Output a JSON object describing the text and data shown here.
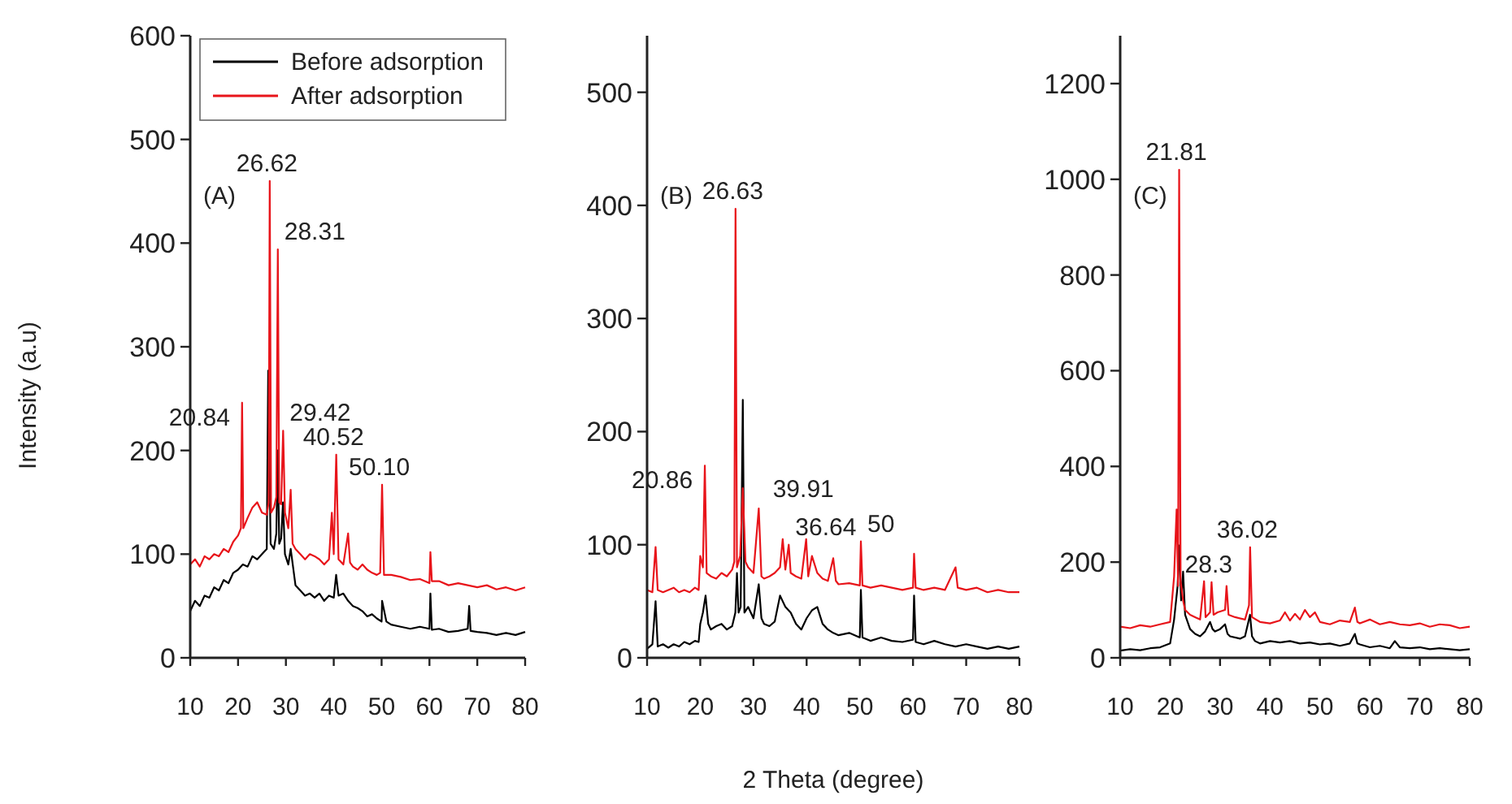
{
  "chart_data": [
    {
      "type": "line",
      "ylabel": "Intensity (a.u)",
      "xlim": [
        10,
        80
      ],
      "xticks": [
        10,
        20,
        30,
        40,
        50,
        60,
        70,
        80
      ],
      "ylim": [
        0,
        600
      ],
      "yticks": [
        0,
        100,
        200,
        300,
        400,
        500,
        600
      ],
      "legend": "top left",
      "line_style": "solid",
      "annotations": [
        "(A)",
        {
          "text": "20.84",
          "x": 20.84,
          "y": 246
        },
        {
          "text": "26.62",
          "x": 26.62,
          "y": 460
        },
        {
          "text": "28.31",
          "x": 28.31,
          "y": 394
        },
        {
          "text": "29.42",
          "x": 29.42,
          "y": 219
        },
        {
          "text": "40.52",
          "x": 40.52,
          "y": 196
        },
        {
          "text": "50.10",
          "x": 50.1,
          "y": 167
        }
      ],
      "series": [
        {
          "name": "Before adsorption",
          "color": "#000000",
          "x": [
            10,
            11,
            12,
            13,
            14,
            15,
            16,
            17,
            18,
            19,
            20,
            21,
            22,
            23,
            24,
            25,
            26,
            26.3,
            26.8,
            27.5,
            28,
            28.3,
            28.6,
            29,
            29.4,
            29.8,
            30.5,
            31,
            32,
            33,
            34,
            35,
            36,
            37,
            38,
            39,
            40,
            40.5,
            41,
            42,
            43,
            44,
            45,
            46,
            47,
            48,
            49,
            50,
            50.1,
            51,
            52,
            54,
            56,
            58,
            60,
            60.2,
            60.5,
            62,
            64,
            66,
            68,
            68.3,
            68.6,
            70,
            72,
            74,
            76,
            78,
            80
          ],
          "values": [
            45,
            55,
            50,
            60,
            58,
            68,
            65,
            75,
            72,
            82,
            85,
            90,
            88,
            98,
            95,
            100,
            105,
            277,
            110,
            105,
            120,
            200,
            110,
            115,
            150,
            100,
            90,
            105,
            70,
            65,
            60,
            62,
            58,
            62,
            55,
            60,
            58,
            80,
            60,
            62,
            55,
            50,
            48,
            45,
            40,
            42,
            38,
            35,
            55,
            35,
            32,
            30,
            28,
            30,
            28,
            62,
            27,
            28,
            25,
            26,
            28,
            50,
            26,
            25,
            24,
            22,
            24,
            22,
            25
          ]
        },
        {
          "name": "After adsorption",
          "color": "#e8141a",
          "x": [
            10,
            11,
            12,
            13,
            14,
            15,
            16,
            17,
            18,
            19,
            20,
            20.6,
            20.84,
            21.1,
            22,
            23,
            24,
            25,
            26,
            26.4,
            26.62,
            26.9,
            27.5,
            28,
            28.31,
            28.6,
            29,
            29.42,
            29.8,
            30.5,
            31,
            31.4,
            32,
            33,
            34,
            35,
            36,
            37,
            38,
            39,
            39.6,
            40,
            40.52,
            41,
            42,
            43,
            43.4,
            44,
            45,
            46,
            47,
            48,
            49,
            49.7,
            50.1,
            50.5,
            52,
            54,
            56,
            58,
            60,
            60.2,
            60.5,
            62,
            64,
            66,
            68,
            70,
            72,
            74,
            76,
            78,
            80
          ],
          "values": [
            90,
            95,
            88,
            98,
            95,
            100,
            98,
            105,
            102,
            112,
            118,
            125,
            246,
            125,
            135,
            145,
            150,
            140,
            138,
            150,
            460,
            140,
            145,
            155,
            394,
            150,
            148,
            219,
            140,
            125,
            162,
            110,
            105,
            100,
            95,
            100,
            98,
            95,
            90,
            95,
            140,
            100,
            196,
            95,
            90,
            120,
            92,
            88,
            85,
            90,
            85,
            82,
            80,
            82,
            167,
            80,
            80,
            78,
            75,
            76,
            72,
            102,
            74,
            74,
            70,
            72,
            70,
            68,
            70,
            66,
            68,
            65,
            68
          ]
        }
      ]
    },
    {
      "type": "line",
      "xlabel": "2 Theta (degree)",
      "xlim": [
        10,
        80
      ],
      "xticks": [
        10,
        20,
        30,
        40,
        50,
        60,
        70,
        80
      ],
      "ylim": [
        0,
        550
      ],
      "yticks": [
        0,
        100,
        200,
        300,
        400,
        500
      ],
      "line_style": "solid",
      "annotations": [
        "(B)",
        {
          "text": "26.63",
          "x": 26.63,
          "y": 397
        },
        {
          "text": "20.86",
          "x": 20.86,
          "y": 170
        },
        {
          "text": "36.64",
          "x": 36.64,
          "y": 100
        },
        {
          "text": "39.91",
          "x": 39.91,
          "y": 105
        },
        {
          "text": "50",
          "x": 50.2,
          "y": 103
        }
      ],
      "series": [
        {
          "color": "#000000",
          "x": [
            10,
            11,
            11.6,
            12,
            13,
            14,
            15,
            16,
            17,
            18,
            19,
            19.7,
            20,
            20.5,
            21,
            21.5,
            22,
            23,
            24,
            25,
            26,
            26.6,
            26.9,
            27.2,
            27.6,
            28,
            28.3,
            29,
            30,
            31,
            31.5,
            32,
            33,
            34,
            35,
            35.5,
            36,
            37,
            38,
            39,
            40,
            41,
            42,
            43,
            44,
            45,
            46,
            48,
            50,
            50.2,
            50.5,
            52,
            54,
            56,
            58,
            60,
            60.2,
            60.5,
            62,
            64,
            66,
            68,
            70,
            72,
            74,
            76,
            78,
            80
          ],
          "values": [
            8,
            12,
            50,
            10,
            12,
            9,
            12,
            10,
            14,
            12,
            15,
            14,
            30,
            40,
            55,
            30,
            25,
            28,
            30,
            25,
            28,
            40,
            75,
            40,
            45,
            228,
            40,
            45,
            35,
            65,
            35,
            30,
            28,
            32,
            55,
            50,
            45,
            40,
            30,
            25,
            35,
            42,
            45,
            30,
            25,
            22,
            20,
            22,
            18,
            60,
            18,
            15,
            18,
            15,
            14,
            16,
            55,
            14,
            12,
            15,
            12,
            10,
            12,
            10,
            8,
            10,
            8,
            10
          ]
        },
        {
          "color": "#e8141a",
          "x": [
            10,
            11,
            11.6,
            12,
            13,
            14,
            15,
            16,
            17,
            18,
            19,
            19.7,
            20,
            20.5,
            20.86,
            21.2,
            22,
            23,
            24,
            25,
            26,
            26.4,
            26.63,
            26.9,
            27.5,
            28,
            28.5,
            29,
            30,
            31,
            31.5,
            32,
            33,
            34,
            35,
            35.5,
            36,
            36.64,
            37,
            38,
            39,
            39.91,
            40.3,
            41,
            42,
            43,
            44,
            45,
            45.5,
            46,
            48,
            50,
            50.2,
            50.5,
            52,
            54,
            56,
            58,
            60,
            60.2,
            60.5,
            62,
            64,
            66,
            68,
            68.4,
            70,
            72,
            74,
            76,
            78,
            80
          ],
          "values": [
            60,
            58,
            98,
            60,
            58,
            60,
            62,
            58,
            60,
            58,
            62,
            60,
            90,
            80,
            170,
            75,
            72,
            70,
            75,
            72,
            78,
            85,
            397,
            80,
            90,
            150,
            85,
            80,
            75,
            132,
            72,
            70,
            72,
            75,
            80,
            105,
            78,
            100,
            75,
            72,
            70,
            105,
            72,
            90,
            75,
            70,
            68,
            88,
            68,
            65,
            66,
            64,
            103,
            64,
            62,
            64,
            62,
            60,
            62,
            92,
            62,
            60,
            62,
            60,
            80,
            62,
            60,
            62,
            58,
            60,
            58,
            58
          ]
        }
      ]
    },
    {
      "type": "line",
      "xlim": [
        10,
        80
      ],
      "xticks": [
        10,
        20,
        30,
        40,
        50,
        60,
        70,
        80
      ],
      "ylim": [
        0,
        1300
      ],
      "yticks": [
        0,
        200,
        400,
        600,
        800,
        1000,
        1200
      ],
      "line_style": "solid",
      "annotations": [
        "(C)",
        {
          "text": "21.81",
          "x": 21.81,
          "y": 1020
        },
        {
          "text": "28.3",
          "x": 28.3,
          "y": 158
        },
        {
          "text": "36.02",
          "x": 36.02,
          "y": 231
        }
      ],
      "series": [
        {
          "color": "#000000",
          "x": [
            10,
            12,
            14,
            16,
            18,
            20,
            20.8,
            21.5,
            21.81,
            22.2,
            22.6,
            23,
            24,
            25,
            26,
            27,
            28,
            28.5,
            29,
            30,
            31,
            31.5,
            32,
            34,
            35,
            36,
            36.4,
            37,
            38,
            40,
            42,
            44,
            46,
            48,
            50,
            52,
            54,
            56,
            57,
            57.5,
            58,
            60,
            62,
            64,
            65,
            66,
            68,
            70,
            72,
            74,
            76,
            78,
            80
          ],
          "values": [
            15,
            18,
            16,
            20,
            22,
            30,
            80,
            150,
            235,
            120,
            180,
            90,
            60,
            50,
            45,
            55,
            75,
            60,
            55,
            60,
            70,
            50,
            45,
            40,
            45,
            90,
            45,
            35,
            30,
            35,
            32,
            35,
            30,
            32,
            28,
            30,
            25,
            30,
            50,
            30,
            28,
            22,
            25,
            20,
            35,
            22,
            20,
            22,
            18,
            20,
            18,
            16,
            18
          ]
        },
        {
          "color": "#e8141a",
          "x": [
            10,
            12,
            14,
            16,
            18,
            20,
            20.8,
            21.3,
            21.6,
            21.81,
            22.1,
            22.6,
            23,
            24,
            25,
            26,
            26.8,
            27.1,
            28,
            28.3,
            28.7,
            29.5,
            31,
            31.3,
            31.7,
            33,
            35,
            35.8,
            36.02,
            36.4,
            38,
            40,
            42,
            43,
            44,
            45,
            46,
            47,
            48,
            49,
            50,
            52,
            54,
            56,
            57,
            57.5,
            58,
            60,
            62,
            64,
            66,
            68,
            70,
            72,
            74,
            76,
            78,
            80
          ],
          "values": [
            65,
            62,
            68,
            65,
            70,
            75,
            170,
            310,
            150,
            1020,
            160,
            120,
            100,
            90,
            85,
            80,
            160,
            85,
            95,
            158,
            90,
            95,
            100,
            150,
            90,
            85,
            80,
            110,
            231,
            85,
            75,
            72,
            78,
            95,
            78,
            92,
            80,
            100,
            85,
            95,
            75,
            70,
            78,
            75,
            105,
            75,
            72,
            80,
            70,
            75,
            70,
            68,
            72,
            65,
            70,
            68,
            62,
            65
          ]
        }
      ]
    }
  ]
}
